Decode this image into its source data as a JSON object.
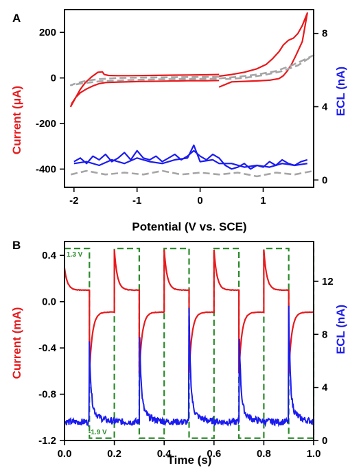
{
  "chart_data": [
    {
      "panel": "A",
      "type": "line",
      "xlabel": "Potential (V vs. SCE)",
      "ylabel_left": "Current (μA)",
      "ylabel_right": "ECL (nA)",
      "xlim": [
        -2.15,
        1.8
      ],
      "ylim_left": [
        -480,
        300
      ],
      "ylim_right": [
        -0.4,
        9.3
      ],
      "x_ticks": [
        "-2",
        "-1",
        "0",
        "1"
      ],
      "x_tick_values": [
        -2,
        -1,
        0,
        1
      ],
      "y_ticks_left": [
        "200",
        "0",
        "-200",
        "-400"
      ],
      "y_tick_values_left": [
        200,
        0,
        -200,
        -400
      ],
      "y_ticks_right": [
        "8",
        "4",
        "0"
      ],
      "y_tick_values_right": [
        8,
        4,
        0
      ],
      "colors": {
        "current": "#e8191c",
        "ecl": "#1b1bf0",
        "background": "#a6a6a6",
        "axis_left": "#e8191c",
        "axis_right": "#1b1bf0"
      },
      "series": [
        {
          "kind": "current-cv",
          "axis": "left",
          "style": "solid",
          "color": "#e8191c",
          "x": [
            0.3,
            0.1,
            -0.2,
            -0.5,
            -0.8,
            -1.1,
            -1.3,
            -1.45,
            -1.52,
            -1.55,
            -1.62,
            -1.72,
            -1.82,
            -1.9,
            -1.97,
            -2.05,
            -2.03,
            -1.97,
            -1.9,
            -1.8,
            -1.7,
            -1.6,
            -1.5,
            -1.3,
            -1.0,
            -0.6,
            -0.2,
            0.1,
            0.3
          ],
          "y": [
            15,
            14,
            13,
            12,
            11,
            10,
            10,
            11,
            15,
            27,
            25,
            5,
            -20,
            -50,
            -85,
            -125,
            -110,
            -85,
            -65,
            -48,
            -35,
            -25,
            -20,
            -18,
            -16,
            -14,
            -12,
            -12,
            -11
          ]
        },
        {
          "kind": "current-cv",
          "axis": "left",
          "style": "solid",
          "color": "#e8191c",
          "x": [
            0.3,
            0.5,
            0.7,
            0.9,
            1.05,
            1.15,
            1.25,
            1.32,
            1.4,
            1.48,
            1.55,
            1.62,
            1.67,
            1.7,
            1.62,
            1.52,
            1.45,
            1.38,
            1.32,
            1.25,
            1.1,
            0.9,
            0.7,
            0.5,
            0.3
          ],
          "y": [
            8,
            15,
            25,
            40,
            60,
            85,
            115,
            145,
            165,
            175,
            195,
            230,
            265,
            285,
            160,
            100,
            60,
            30,
            10,
            -3,
            -10,
            -13,
            -15,
            -17,
            -40
          ]
        },
        {
          "kind": "ecl",
          "axis": "right",
          "style": "solid",
          "color": "#1b1bf0",
          "x": [
            -2.0,
            -1.9,
            -1.8,
            -1.7,
            -1.6,
            -1.5,
            -1.4,
            -1.3,
            -1.2,
            -1.1,
            -1.0,
            -0.9,
            -0.8,
            -0.7,
            -0.6,
            -0.5,
            -0.4,
            -0.3,
            -0.2,
            -0.1,
            0.0,
            0.1,
            0.2,
            0.3,
            0.4,
            0.5,
            0.6,
            0.7,
            0.8,
            0.9,
            1.0,
            1.1,
            1.2,
            1.3,
            1.4,
            1.5,
            1.6,
            1.7
          ],
          "y": [
            1.0,
            1.2,
            0.9,
            1.3,
            1.1,
            1.4,
            1.0,
            1.2,
            1.5,
            1.1,
            1.6,
            1.2,
            1.1,
            1.3,
            1.0,
            1.2,
            1.4,
            1.1,
            1.3,
            1.6,
            1.3,
            1.1,
            1.4,
            1.2,
            0.8,
            0.6,
            0.7,
            0.9,
            0.6,
            0.8,
            0.7,
            1.0,
            0.8,
            1.1,
            0.9,
            0.8,
            1.0,
            1.1
          ]
        },
        {
          "kind": "ecl",
          "axis": "right",
          "style": "solid",
          "color": "#1b1bf0",
          "x": [
            -2.0,
            -1.8,
            -1.6,
            -1.4,
            -1.2,
            -1.0,
            -0.8,
            -0.6,
            -0.4,
            -0.2,
            -0.1,
            0.0,
            0.2,
            0.3,
            0.5,
            0.7,
            0.9,
            1.1,
            1.3,
            1.5,
            1.7
          ],
          "y": [
            0.9,
            1.0,
            0.8,
            1.1,
            0.9,
            1.2,
            1.0,
            0.9,
            1.1,
            1.2,
            1.9,
            1.0,
            1.1,
            0.9,
            0.9,
            0.7,
            0.8,
            0.7,
            0.9,
            0.8,
            0.9
          ]
        },
        {
          "kind": "background",
          "axis": "left",
          "style": "dashed",
          "color": "#a6a6a6",
          "x": [
            0.3,
            -0.2,
            -0.8,
            -1.3,
            -1.6,
            -1.8,
            -1.95,
            -2.05,
            -1.9,
            -1.6,
            -1.2,
            -0.6,
            0.0,
            0.3
          ],
          "y": [
            5,
            4,
            2,
            0,
            -5,
            -12,
            -22,
            -32,
            -25,
            -15,
            -10,
            -6,
            -4,
            -3
          ]
        },
        {
          "kind": "background",
          "axis": "left",
          "style": "dashed",
          "color": "#a6a6a6",
          "x": [
            0.3,
            0.6,
            0.9,
            1.2,
            1.45,
            1.65,
            1.8,
            1.55,
            1.3,
            1.0,
            0.7,
            0.4
          ],
          "y": [
            -2,
            5,
            15,
            30,
            55,
            80,
            100,
            55,
            30,
            12,
            0,
            -5
          ]
        },
        {
          "kind": "background",
          "axis": "right",
          "style": "dashed",
          "color": "#a6a6a6",
          "x": [
            -2.05,
            -1.8,
            -1.5,
            -1.2,
            -0.9,
            -0.6,
            -0.3,
            0.0,
            0.3,
            0.6,
            0.9,
            1.2,
            1.5,
            1.8
          ],
          "y": [
            0.3,
            0.5,
            0.3,
            0.4,
            0.3,
            0.5,
            0.3,
            0.4,
            0.3,
            0.4,
            0.2,
            0.4,
            0.3,
            0.5
          ]
        }
      ]
    },
    {
      "panel": "B",
      "type": "line",
      "xlabel": "Time (s)",
      "ylabel_left": "Current (mA)",
      "ylabel_right": "ECL (nA)",
      "xlim": [
        0.0,
        1.0
      ],
      "ylim_left": [
        -1.2,
        0.52
      ],
      "ylim_right": [
        0,
        15
      ],
      "x_ticks": [
        "0.0",
        "0.2",
        "0.4",
        "0.6",
        "0.8",
        "1.0"
      ],
      "x_tick_values": [
        0.0,
        0.2,
        0.4,
        0.6,
        0.8,
        1.0
      ],
      "y_ticks_left": [
        "0.4",
        "0.0",
        "-0.4",
        "-0.8",
        "-1.2"
      ],
      "y_tick_values_left": [
        0.4,
        0.0,
        -0.4,
        -0.8,
        -1.2
      ],
      "y_ticks_right": [
        "12",
        "8",
        "4",
        "0"
      ],
      "y_tick_values_right": [
        12,
        8,
        4,
        0
      ],
      "annotations": [
        {
          "text": "1.3 V",
          "x": 0.005,
          "y": 0.34
        },
        {
          "text": "-1.9 V",
          "x": 0.11,
          "y": -1.13
        }
      ],
      "colors": {
        "current": "#e8191c",
        "ecl": "#1b1bf0",
        "potential": "#2a8a2a"
      },
      "potential_square_wave": {
        "high": 1.3,
        "low": -1.9,
        "period": 0.2,
        "high_fraction": 0.5,
        "draw_high": 0.46,
        "draw_low": -1.18
      },
      "current_pulse": {
        "peak_pos": 0.45,
        "plateau_pos": 0.1,
        "peak_neg": -0.62,
        "plateau_neg": -0.09,
        "first_start": 0.29
      },
      "ecl_pulse": {
        "baseline": 1.4,
        "peak": 8.5,
        "first_peak": 6.0,
        "tail": 2.0
      }
    }
  ]
}
